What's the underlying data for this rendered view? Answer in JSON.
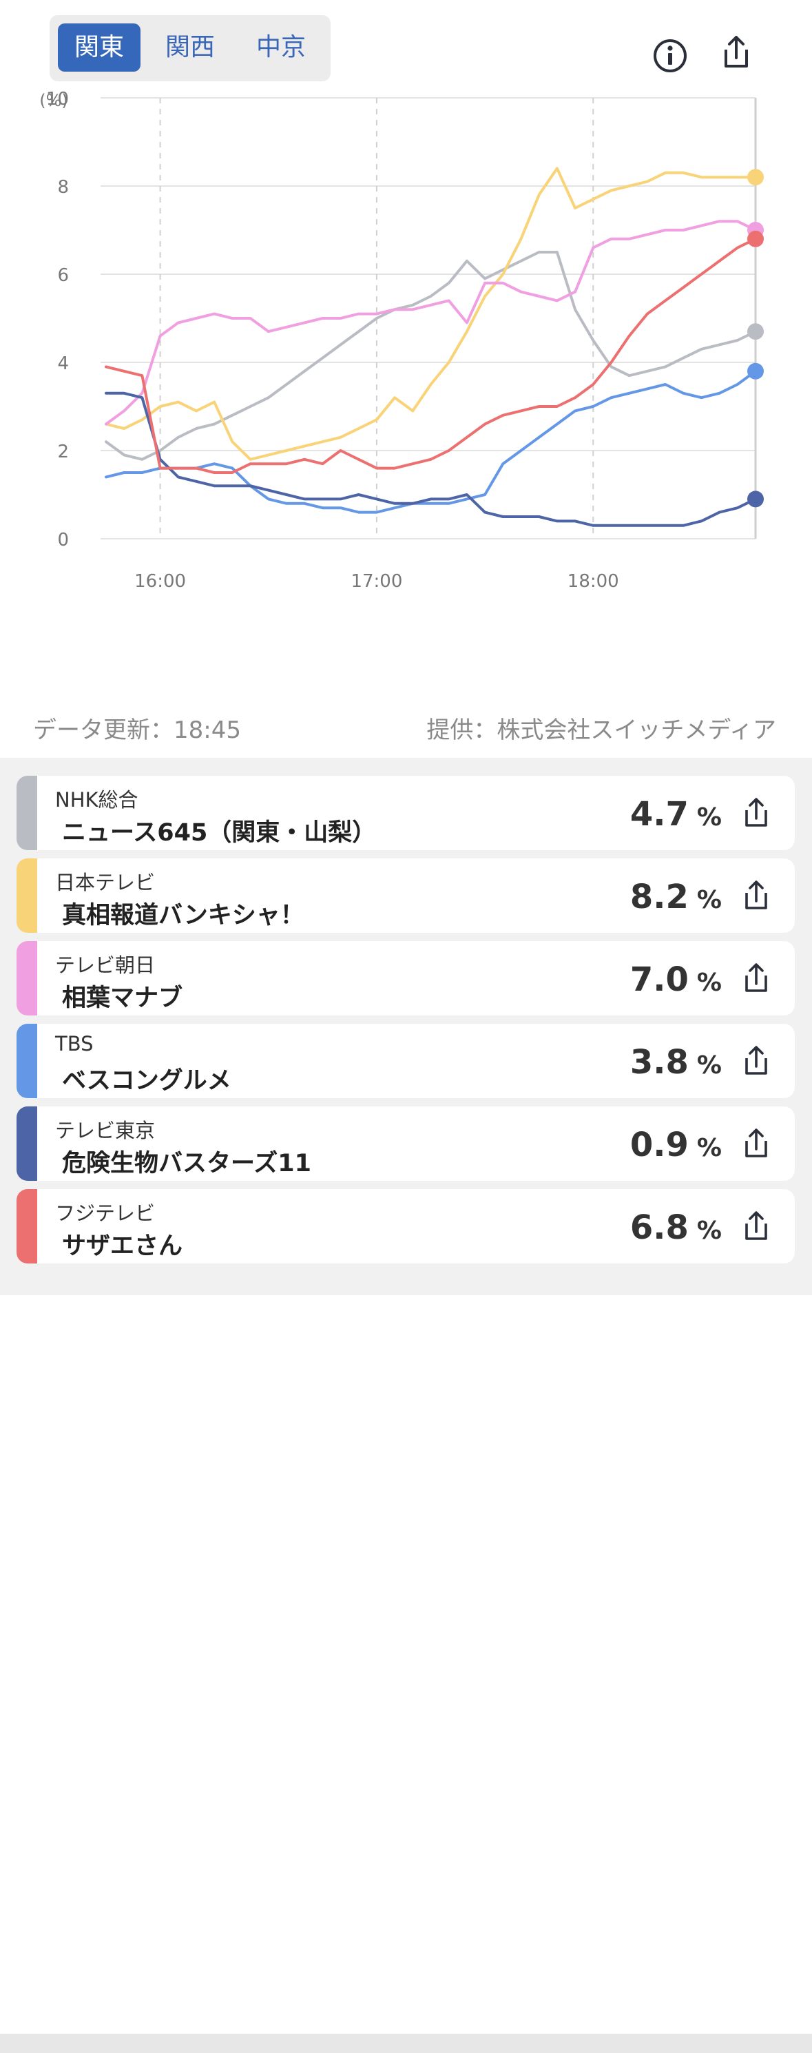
{
  "region_tabs": [
    {
      "label": "関東",
      "active": true
    },
    {
      "label": "関西",
      "active": false
    },
    {
      "label": "中京",
      "active": false
    }
  ],
  "icons": {
    "info": "info-icon",
    "share": "share-icon"
  },
  "footer": {
    "updated": "データ更新：18:45",
    "provider": "提供：株式会社スイッチメディア"
  },
  "chart_data": {
    "type": "line",
    "yunit": "(%)",
    "ylim": [
      0,
      10
    ],
    "yticks": [
      "0",
      "2",
      "4",
      "6",
      "8",
      "10"
    ],
    "xticks": [
      "16:00",
      "17:00",
      "18:00"
    ],
    "x": [
      "15:45",
      "15:50",
      "15:55",
      "16:00",
      "16:05",
      "16:10",
      "16:15",
      "16:20",
      "16:25",
      "16:30",
      "16:35",
      "16:40",
      "16:45",
      "16:50",
      "16:55",
      "17:00",
      "17:05",
      "17:10",
      "17:15",
      "17:20",
      "17:25",
      "17:30",
      "17:35",
      "17:40",
      "17:45",
      "17:50",
      "17:55",
      "18:00",
      "18:05",
      "18:10",
      "18:15",
      "18:20",
      "18:25",
      "18:30",
      "18:35",
      "18:40",
      "18:45"
    ],
    "grid": true,
    "legend": "none",
    "series": [
      {
        "name": "NHK総合",
        "color": "#b9bdc3",
        "values": [
          2.2,
          1.9,
          1.8,
          2.0,
          2.3,
          2.5,
          2.6,
          2.8,
          3.0,
          3.2,
          3.5,
          3.8,
          4.1,
          4.4,
          4.7,
          5.0,
          5.2,
          5.3,
          5.5,
          5.8,
          6.3,
          5.9,
          6.1,
          6.3,
          6.5,
          6.5,
          5.2,
          4.5,
          3.9,
          3.7,
          3.8,
          3.9,
          4.1,
          4.3,
          4.4,
          4.5,
          4.7
        ]
      },
      {
        "name": "日本テレビ",
        "color": "#f8d378",
        "values": [
          2.6,
          2.5,
          2.7,
          3.0,
          3.1,
          2.9,
          3.1,
          2.2,
          1.8,
          1.9,
          2.0,
          2.1,
          2.2,
          2.3,
          2.5,
          2.7,
          3.2,
          2.9,
          3.5,
          4.0,
          4.7,
          5.5,
          6.0,
          6.8,
          7.8,
          8.4,
          7.5,
          7.7,
          7.9,
          8.0,
          8.1,
          8.3,
          8.3,
          8.2,
          8.2,
          8.2,
          8.2
        ]
      },
      {
        "name": "テレビ朝日",
        "color": "#f0a0e0",
        "values": [
          2.6,
          2.9,
          3.3,
          4.6,
          4.9,
          5.0,
          5.1,
          5.0,
          5.0,
          4.7,
          4.8,
          4.9,
          5.0,
          5.0,
          5.1,
          5.1,
          5.2,
          5.2,
          5.3,
          5.4,
          4.9,
          5.8,
          5.8,
          5.6,
          5.5,
          5.4,
          5.6,
          6.6,
          6.8,
          6.8,
          6.9,
          7.0,
          7.0,
          7.1,
          7.2,
          7.2,
          7.0
        ]
      },
      {
        "name": "TBS",
        "color": "#6497e6",
        "values": [
          1.4,
          1.5,
          1.5,
          1.6,
          1.6,
          1.6,
          1.7,
          1.6,
          1.2,
          0.9,
          0.8,
          0.8,
          0.7,
          0.7,
          0.6,
          0.6,
          0.7,
          0.8,
          0.8,
          0.8,
          0.9,
          1.0,
          1.7,
          2.0,
          2.3,
          2.6,
          2.9,
          3.0,
          3.2,
          3.3,
          3.4,
          3.5,
          3.3,
          3.2,
          3.3,
          3.5,
          3.8
        ]
      },
      {
        "name": "テレビ東京",
        "color": "#4d64a6",
        "values": [
          3.3,
          3.3,
          3.2,
          1.8,
          1.4,
          1.3,
          1.2,
          1.2,
          1.2,
          1.1,
          1.0,
          0.9,
          0.9,
          0.9,
          1.0,
          0.9,
          0.8,
          0.8,
          0.9,
          0.9,
          1.0,
          0.6,
          0.5,
          0.5,
          0.5,
          0.4,
          0.4,
          0.3,
          0.3,
          0.3,
          0.3,
          0.3,
          0.3,
          0.4,
          0.6,
          0.7,
          0.9
        ]
      },
      {
        "name": "フジテレビ",
        "color": "#ec7070",
        "values": [
          3.9,
          3.8,
          3.7,
          1.6,
          1.6,
          1.6,
          1.5,
          1.5,
          1.7,
          1.7,
          1.7,
          1.8,
          1.7,
          2.0,
          1.8,
          1.6,
          1.6,
          1.7,
          1.8,
          2.0,
          2.3,
          2.6,
          2.8,
          2.9,
          3.0,
          3.0,
          3.2,
          3.5,
          4.0,
          4.6,
          5.1,
          5.4,
          5.7,
          6.0,
          6.3,
          6.6,
          6.8
        ]
      }
    ]
  },
  "channels": [
    {
      "channel": "NHK総合",
      "program": "ニュース645（関東・山梨）",
      "rating": "4.7",
      "unit": "%",
      "color": "#b9bdc3"
    },
    {
      "channel": "日本テレビ",
      "program": "真相報道バンキシャ！",
      "rating": "8.2",
      "unit": "%",
      "color": "#f8d378"
    },
    {
      "channel": "テレビ朝日",
      "program": "相葉マナブ",
      "rating": "7.0",
      "unit": "%",
      "color": "#f0a0e0"
    },
    {
      "channel": "TBS",
      "program": "ベスコングルメ",
      "rating": "3.8",
      "unit": "%",
      "color": "#6497e6"
    },
    {
      "channel": "テレビ東京",
      "program": "危険生物バスターズ11",
      "rating": "0.9",
      "unit": "%",
      "color": "#4d64a6"
    },
    {
      "channel": "フジテレビ",
      "program": "サザエさん",
      "rating": "6.8",
      "unit": "%",
      "color": "#ec7070"
    }
  ]
}
